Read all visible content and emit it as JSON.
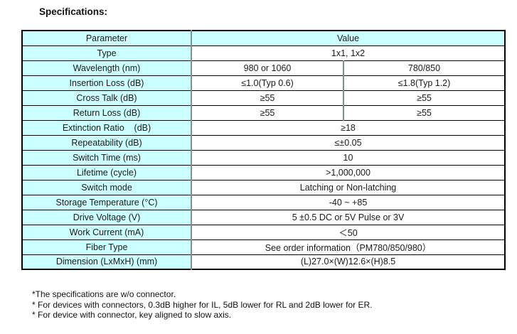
{
  "title": "Specifications:",
  "colors": {
    "cell_background": "#CCFFFF",
    "border": "#000000",
    "inner_divider": "#7d9296",
    "text": "#1a1a1a"
  },
  "table": {
    "header": {
      "param": "Parameter",
      "value": "Value"
    },
    "rows": [
      {
        "param": "Type",
        "values": [
          "1x1, 1x2"
        ]
      },
      {
        "param": "Wavelength (nm)",
        "values": [
          "980 or 1060",
          "780/850"
        ]
      },
      {
        "param": "Insertion Loss (dB)",
        "values": [
          "≤1.0(Typ 0.6)",
          "≤1.8(Typ 1.2)"
        ]
      },
      {
        "param": "Cross Talk (dB)",
        "values": [
          "≥55",
          "≥55"
        ]
      },
      {
        "param": "Return Loss (dB)",
        "values": [
          "≥55",
          "≥55"
        ]
      },
      {
        "param": "Extinction Ratio    (dB)",
        "values": [
          "≥18"
        ]
      },
      {
        "param": "Repeatability (dB)",
        "values": [
          "≤±0.05"
        ]
      },
      {
        "param": "Switch Time (ms)",
        "values": [
          "10"
        ]
      },
      {
        "param": "Lifetime (cycle)",
        "values": [
          ">1,000,000"
        ]
      },
      {
        "param": "Switch mode",
        "values": [
          "Latching or Non-latching"
        ]
      },
      {
        "param": "Storage Temperature (°C)",
        "values": [
          "-40 ~ +85"
        ]
      },
      {
        "param": "Drive Voltage (V)",
        "values": [
          "5 ±0.5 DC or 5V Pulse or 3V"
        ]
      },
      {
        "param": "Work Current (mA)",
        "values": [
          "＜50"
        ]
      },
      {
        "param": "Fiber Type",
        "values": [
          "See order information（PM780/850/980）"
        ]
      },
      {
        "param": "Dimension (LxMxH) (mm)",
        "values": [
          "(L)27.0×(W)12.6×(H)8.5"
        ]
      }
    ]
  },
  "footnotes": [
    "*The specifications are w/o connector.",
    "* For devices with connectors, 0.3dB higher for IL, 5dB lower for RL and 2dB lower for ER.",
    "* For device with connector, key aligned to slow axis."
  ]
}
